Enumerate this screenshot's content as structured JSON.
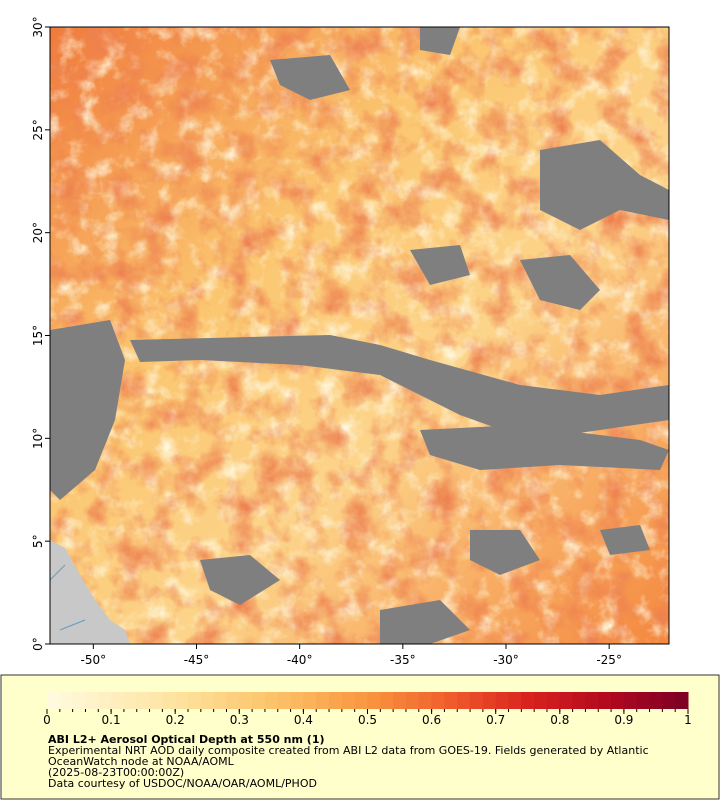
{
  "map": {
    "xlim": [
      -52.1,
      -22.1
    ],
    "ylim": [
      0,
      30
    ],
    "xticks": [
      {
        "value": -50,
        "label": "-50°"
      },
      {
        "value": -45,
        "label": "-45°"
      },
      {
        "value": -40,
        "label": "-40°"
      },
      {
        "value": -35,
        "label": "-35°"
      },
      {
        "value": -30,
        "label": "-30°"
      },
      {
        "value": -25,
        "label": "-25°"
      }
    ],
    "yticks": [
      {
        "value": 0,
        "label": "0°"
      },
      {
        "value": 5,
        "label": "5°"
      },
      {
        "value": 10,
        "label": "10°"
      },
      {
        "value": 15,
        "label": "15°"
      },
      {
        "value": 20,
        "label": "20°"
      },
      {
        "value": 25,
        "label": "25°"
      },
      {
        "value": 30,
        "label": "30°"
      }
    ]
  },
  "colorbar": {
    "lim": [
      0,
      1
    ],
    "steps": 50,
    "ticks": [
      0,
      0.1,
      0.2,
      0.3,
      0.4,
      0.5,
      0.6,
      0.7,
      0.8,
      0.9,
      1
    ],
    "colormap": [
      [
        0,
        "#fffbe0"
      ],
      [
        0.2,
        "#fee3a0"
      ],
      [
        0.35,
        "#fcc46a"
      ],
      [
        0.5,
        "#f99640"
      ],
      [
        0.62,
        "#f1602c"
      ],
      [
        0.75,
        "#d9221e"
      ],
      [
        0.88,
        "#b0081e"
      ],
      [
        1,
        "#7a0026"
      ]
    ]
  },
  "caption": {
    "title": "ABI L2+ Aerosol Optical Depth at 550 nm (1)",
    "lines": [
      "Experimental NRT AOD daily composite created from ABI L2 data from GOES-19. Fields generated by Atlantic",
      "OceanWatch node at NOAA/AOML",
      "(2025-08-23T00:00:00Z)",
      "Data courtesy of USDOC/NOAA/OAR/AOML/PHOD"
    ]
  }
}
